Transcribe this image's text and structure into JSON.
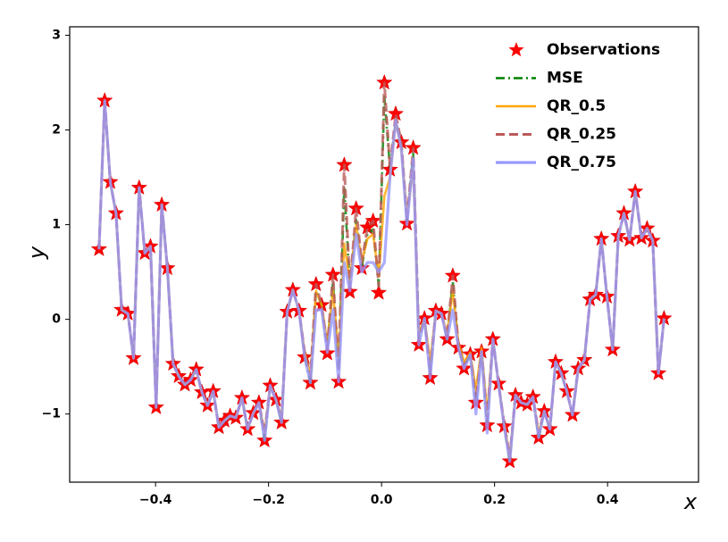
{
  "chart_data": {
    "type": "line",
    "x_label": "x",
    "y_label": "y",
    "xlim": [
      -0.552,
      0.561
    ],
    "ylim": [
      -1.72,
      3.09
    ],
    "xticks": [
      {
        "value": -0.4,
        "label": "−0.4"
      },
      {
        "value": -0.2,
        "label": "−0.2"
      },
      {
        "value": 0,
        "label": "0.0"
      },
      0.2,
      0.4
    ],
    "yticks": [
      {
        "value": -1,
        "label": "−1"
      },
      0,
      1,
      2,
      3
    ],
    "legend": "upper right",
    "x": [
      -0.5,
      -0.49,
      -0.48,
      -0.47,
      -0.46,
      -0.449,
      -0.439,
      -0.429,
      -0.419,
      -0.409,
      -0.399,
      -0.389,
      -0.379,
      -0.369,
      -0.359,
      -0.348,
      -0.338,
      -0.328,
      -0.318,
      -0.308,
      -0.298,
      -0.288,
      -0.278,
      -0.268,
      -0.258,
      -0.247,
      -0.237,
      -0.227,
      -0.217,
      -0.207,
      -0.197,
      -0.187,
      -0.177,
      -0.167,
      -0.157,
      -0.146,
      -0.136,
      -0.126,
      -0.116,
      -0.106,
      -0.096,
      -0.086,
      -0.076,
      -0.066,
      -0.056,
      -0.045,
      -0.035,
      -0.025,
      -0.015,
      -0.005,
      0.005,
      0.015,
      0.025,
      0.035,
      0.045,
      0.056,
      0.066,
      0.076,
      0.086,
      0.096,
      0.106,
      0.116,
      0.126,
      0.136,
      0.146,
      0.157,
      0.167,
      0.177,
      0.187,
      0.197,
      0.207,
      0.217,
      0.227,
      0.237,
      0.247,
      0.258,
      0.268,
      0.278,
      0.288,
      0.298,
      0.308,
      0.318,
      0.328,
      0.338,
      0.348,
      0.359,
      0.369,
      0.379,
      0.389,
      0.399,
      0.409,
      0.419,
      0.429,
      0.439,
      0.449,
      0.46,
      0.47,
      0.48,
      0.49,
      0.5
    ],
    "series": [
      {
        "name": "Observations",
        "kind": "scatter",
        "color": "#ff0000",
        "values": [
          0.74,
          2.31,
          1.45,
          1.12,
          0.1,
          0.06,
          -0.41,
          1.39,
          0.7,
          0.77,
          -0.93,
          1.21,
          0.54,
          -0.47,
          -0.6,
          -0.69,
          -0.64,
          -0.53,
          -0.77,
          -0.91,
          -0.76,
          -1.14,
          -1.07,
          -1.02,
          -1.04,
          -0.83,
          -1.16,
          -0.99,
          -0.88,
          -1.28,
          -0.7,
          -0.85,
          -1.09,
          0.08,
          0.31,
          0.09,
          -0.4,
          -0.67,
          0.37,
          0.15,
          -0.36,
          0.47,
          -0.66,
          1.63,
          0.29,
          1.17,
          0.54,
          0.97,
          1.04,
          0.28,
          2.5,
          1.58,
          2.17,
          1.87,
          1.01,
          1.81,
          -0.27,
          0.01,
          -0.62,
          0.09,
          0.06,
          -0.21,
          0.46,
          -0.3,
          -0.52,
          -0.37,
          -0.88,
          -0.34,
          -1.12,
          -0.21,
          -0.68,
          -1.13,
          -1.5,
          -0.8,
          -0.88,
          -0.9,
          -0.82,
          -1.25,
          -0.97,
          -1.16,
          -0.45,
          -0.57,
          -0.76,
          -1.01,
          -0.52,
          -0.43,
          0.21,
          0.26,
          0.85,
          0.24,
          -0.32,
          0.88,
          1.12,
          0.84,
          1.35,
          0.86,
          0.96,
          0.83,
          -0.57,
          0.01
        ]
      },
      {
        "name": "MSE",
        "kind": "line",
        "dash": "dashdot",
        "color": "#008000",
        "values": [
          0.74,
          2.31,
          1.45,
          1.12,
          0.1,
          0.06,
          -0.41,
          1.39,
          0.7,
          0.77,
          -0.93,
          1.21,
          0.54,
          -0.47,
          -0.6,
          -0.69,
          -0.64,
          -0.53,
          -0.77,
          -0.91,
          -0.76,
          -1.14,
          -1.07,
          -1.02,
          -1.04,
          -0.83,
          -1.16,
          -0.99,
          -0.88,
          -1.28,
          -0.7,
          -0.85,
          -1.09,
          0.08,
          0.31,
          0.09,
          -0.4,
          -0.67,
          0.3,
          0.15,
          -0.3,
          0.4,
          -0.55,
          1.4,
          0.35,
          1.05,
          0.55,
          0.9,
          0.95,
          0.35,
          2.35,
          1.6,
          2.1,
          1.85,
          1.05,
          1.75,
          -0.2,
          0.01,
          -0.55,
          0.09,
          0.06,
          -0.21,
          0.4,
          -0.3,
          -0.5,
          -0.37,
          -0.85,
          -0.34,
          -1.1,
          -0.21,
          -0.68,
          -1.13,
          -1.5,
          -0.8,
          -0.88,
          -0.9,
          -0.82,
          -1.25,
          -0.97,
          -1.16,
          -0.45,
          -0.57,
          -0.76,
          -1.01,
          -0.52,
          -0.43,
          0.21,
          0.26,
          0.85,
          0.24,
          -0.32,
          0.88,
          1.12,
          0.84,
          1.35,
          0.86,
          0.96,
          0.83,
          -0.57,
          0.01
        ]
      },
      {
        "name": "QR_0.5",
        "kind": "line",
        "dash": "solid",
        "color": "#ffa500",
        "values": [
          0.74,
          2.31,
          1.45,
          1.12,
          0.1,
          0.06,
          -0.41,
          1.39,
          0.7,
          0.77,
          -0.93,
          1.21,
          0.54,
          -0.47,
          -0.6,
          -0.69,
          -0.64,
          -0.53,
          -0.77,
          -0.91,
          -0.76,
          -1.14,
          -1.07,
          -1.02,
          -1.04,
          -0.83,
          -1.16,
          -0.99,
          -0.88,
          -1.2,
          -0.7,
          -0.85,
          -1.05,
          0.08,
          0.31,
          0.09,
          -0.35,
          -0.6,
          0.3,
          0.15,
          -0.25,
          0.3,
          -0.4,
          0.8,
          0.4,
          1.0,
          0.6,
          0.85,
          0.9,
          0.45,
          1.3,
          1.5,
          2.1,
          1.8,
          1.1,
          1.6,
          -0.15,
          0.01,
          -0.45,
          0.09,
          0.06,
          -0.15,
          0.3,
          -0.25,
          -0.45,
          -0.35,
          -0.75,
          -0.3,
          -1.0,
          -0.21,
          -0.68,
          -1.1,
          -1.45,
          -0.8,
          -0.88,
          -0.9,
          -0.82,
          -1.2,
          -0.97,
          -1.16,
          -0.45,
          -0.57,
          -0.76,
          -1.01,
          -0.52,
          -0.43,
          0.21,
          0.26,
          0.85,
          0.24,
          -0.32,
          0.88,
          1.12,
          0.84,
          1.35,
          0.86,
          0.96,
          0.83,
          -0.57,
          0.01
        ]
      },
      {
        "name": "QR_0.25",
        "kind": "line",
        "dash": "dashed",
        "color": "#bc5a5a",
        "values": [
          0.74,
          2.31,
          1.45,
          1.12,
          0.1,
          0.06,
          -0.41,
          1.39,
          0.7,
          0.77,
          -0.93,
          1.21,
          0.54,
          -0.47,
          -0.6,
          -0.69,
          -0.64,
          -0.53,
          -0.77,
          -0.91,
          -0.76,
          -1.14,
          -1.07,
          -1.02,
          -1.04,
          -0.83,
          -1.16,
          -0.99,
          -0.88,
          -1.2,
          -0.7,
          -0.85,
          -1.05,
          0.08,
          0.31,
          0.09,
          -0.35,
          -0.6,
          0.37,
          0.15,
          -0.3,
          0.47,
          -0.55,
          1.63,
          0.35,
          1.17,
          0.6,
          0.97,
          1.04,
          0.35,
          2.5,
          1.6,
          2.17,
          1.87,
          1.05,
          1.81,
          -0.2,
          0.01,
          -0.55,
          0.09,
          0.06,
          -0.18,
          0.46,
          -0.28,
          -0.5,
          -0.37,
          -0.85,
          -0.34,
          -1.05,
          -0.21,
          -0.68,
          -1.1,
          -1.45,
          -0.8,
          -0.88,
          -0.9,
          -0.82,
          -1.2,
          -0.97,
          -1.16,
          -0.45,
          -0.57,
          -0.76,
          -1.01,
          -0.52,
          -0.43,
          0.21,
          0.26,
          0.85,
          0.24,
          -0.32,
          0.88,
          1.12,
          0.84,
          1.35,
          0.86,
          0.96,
          0.83,
          -0.57,
          0.01
        ]
      },
      {
        "name": "QR_0.75",
        "kind": "line",
        "dash": "solid",
        "color": "#9999ff",
        "values": [
          0.74,
          2.31,
          1.45,
          1.12,
          0.1,
          0.06,
          -0.41,
          1.39,
          0.7,
          0.77,
          -0.93,
          1.21,
          0.54,
          -0.47,
          -0.6,
          -0.69,
          -0.64,
          -0.53,
          -0.77,
          -0.91,
          -0.76,
          -1.14,
          -1.07,
          -1.02,
          -1.04,
          -0.83,
          -1.16,
          -0.99,
          -0.88,
          -1.28,
          -0.7,
          -0.85,
          -1.09,
          0.08,
          0.31,
          0.09,
          -0.4,
          -0.67,
          0.1,
          0.1,
          -0.35,
          0.1,
          -0.66,
          0.6,
          0.3,
          0.9,
          0.5,
          0.6,
          0.6,
          0.5,
          0.6,
          1.5,
          2.1,
          1.8,
          1.0,
          1.7,
          -0.27,
          0.01,
          -0.62,
          0.09,
          0.06,
          -0.21,
          0.1,
          -0.3,
          -0.52,
          -0.37,
          -1.0,
          -0.34,
          -1.2,
          -0.21,
          -0.68,
          -1.13,
          -1.5,
          -0.8,
          -0.88,
          -0.9,
          -0.82,
          -1.25,
          -0.97,
          -1.16,
          -0.45,
          -0.57,
          -0.76,
          -1.01,
          -0.52,
          -0.43,
          0.21,
          0.26,
          0.85,
          0.24,
          -0.32,
          0.88,
          1.12,
          0.84,
          1.35,
          0.86,
          0.96,
          0.83,
          -0.57,
          0.01
        ]
      }
    ]
  }
}
